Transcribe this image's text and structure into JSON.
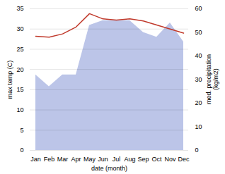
{
  "chart_data": {
    "type": "line",
    "categories": [
      "Jan",
      "Feb",
      "Mar",
      "Apr",
      "May",
      "Jun",
      "Jul",
      "Aug",
      "Sep",
      "Oct",
      "Nov",
      "Dec"
    ],
    "xlabel": "date (month)",
    "ylabel": "max temp (C)",
    "y2label": "med. precipitation\n(kg/m2)",
    "ylim": [
      0,
      35
    ],
    "yticks": [
      0,
      5,
      10,
      15,
      20,
      25,
      30,
      35
    ],
    "y2lim": [
      0,
      60
    ],
    "y2ticks": [
      0,
      10,
      20,
      30,
      40,
      50,
      60
    ],
    "grid": true,
    "series": [
      {
        "type": "area",
        "axis": "y2",
        "color": "#bcc5e8",
        "values": [
          32,
          27,
          32,
          32,
          53,
          55,
          55,
          55,
          50,
          48,
          54,
          46
        ]
      },
      {
        "type": "line",
        "color": "#c0392b",
        "values": [
          28.2,
          28.0,
          28.8,
          30.5,
          33.8,
          32.5,
          32.2,
          32.5,
          32.0,
          31.0,
          30.0,
          29.0
        ]
      }
    ]
  }
}
